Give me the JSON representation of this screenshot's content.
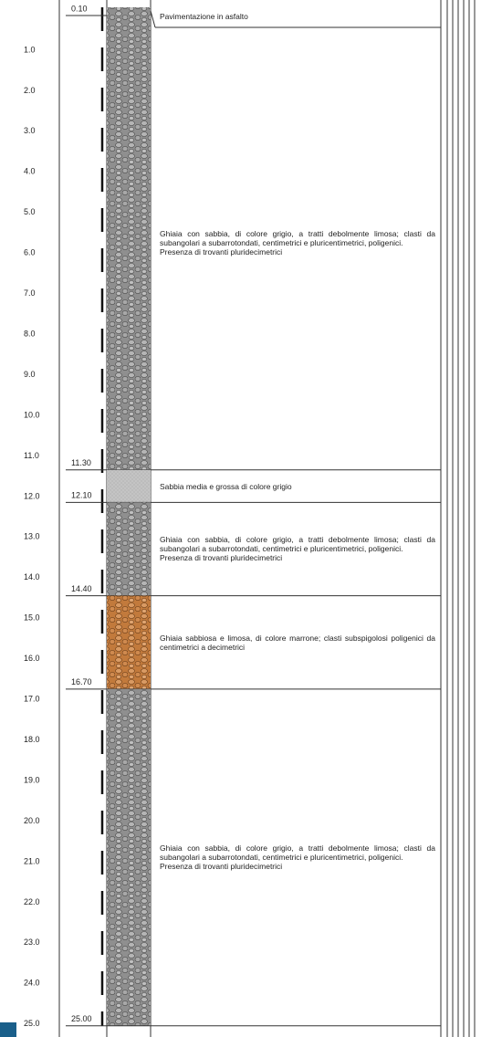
{
  "depth_labels": [
    "1.0",
    "2.0",
    "3.0",
    "4.0",
    "5.0",
    "6.0",
    "7.0",
    "8.0",
    "9.0",
    "10.0",
    "11.0",
    "12.0",
    "13.0",
    "14.0",
    "15.0",
    "16.0",
    "17.0",
    "18.0",
    "19.0",
    "20.0",
    "21.0",
    "22.0",
    "23.0",
    "24.0",
    "25.0"
  ],
  "layers": [
    {
      "base": "0.10",
      "description": [
        "Pavimentazione in asfalto"
      ]
    },
    {
      "base": "11.30",
      "description": [
        "Ghiaia con sabbia, di colore grigio, a tratti debolmente limosa; clasti da subangolari a subarrotondati, centimetrici e pluricentimetrici, poligenici.",
        "Presenza di trovanti pluridecimetrici"
      ]
    },
    {
      "base": "12.10",
      "description": [
        "Sabbia media e grossa di colore grigio"
      ]
    },
    {
      "base": "14.40",
      "description": [
        "Ghiaia con sabbia, di colore grigio, a tratti debolmente limosa; clasti da subangolari a subarrotondati, centimetrici e pluricentimetrici, poligenici.",
        "Presenza di trovanti pluridecimetrici"
      ]
    },
    {
      "base": "16.70",
      "description": [
        "Ghiaia sabbiosa e limosa, di colore marrone; clasti subspigolosi poligenici da centimetrici a decimetrici"
      ]
    },
    {
      "base": "25.00",
      "description": [
        "Ghiaia con sabbia, di colore grigio, a tratti debolmente limosa; clasti da subangolari a subarrotondati, centimetrici e pluricentimetrici, poligenici.",
        "Presenza di trovanti pluridecimetrici"
      ]
    }
  ]
}
